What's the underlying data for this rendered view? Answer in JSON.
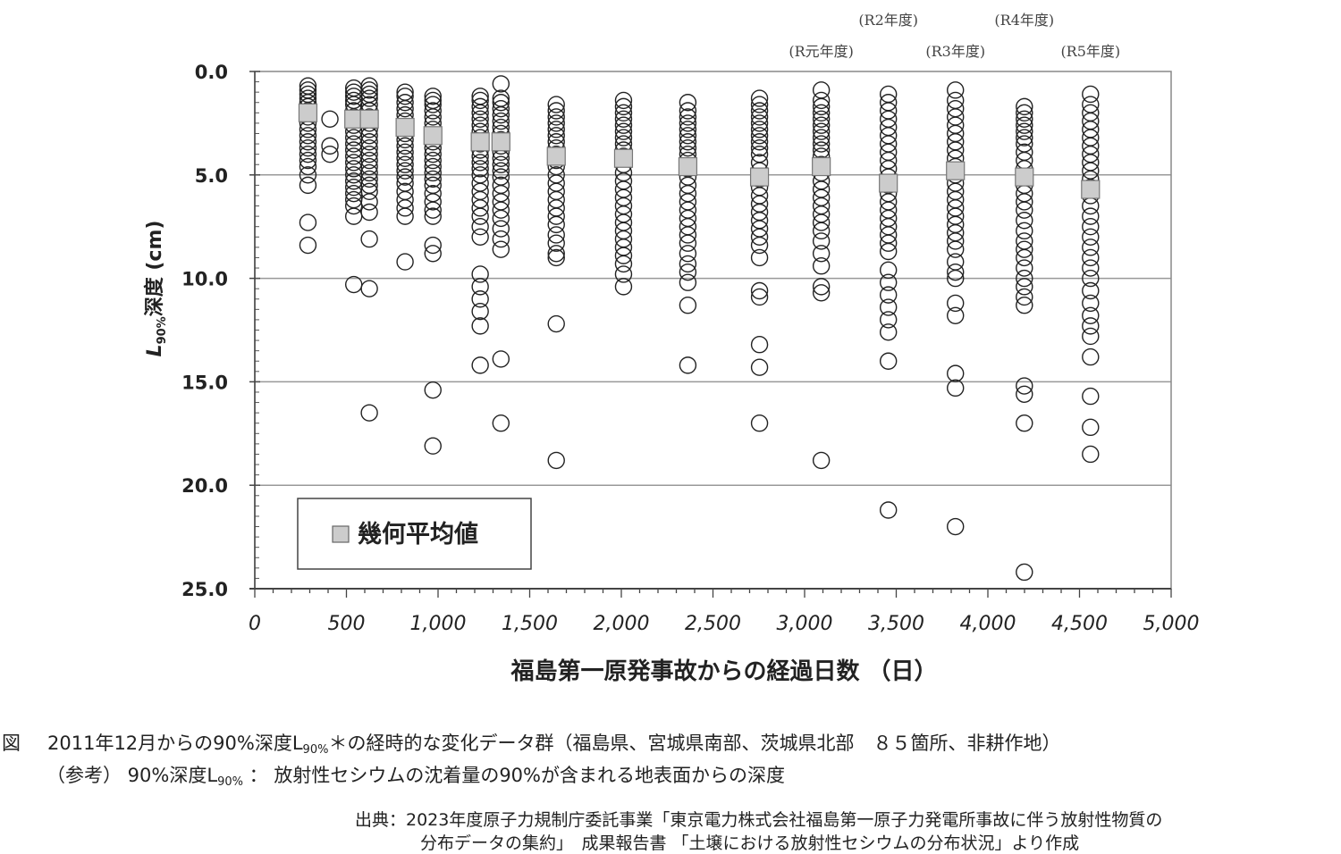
{
  "chart_data": {
    "type": "scatter",
    "title": "",
    "xlabel": "福島第一原発事故からの経過日数 （日）",
    "ylabel_main": "L",
    "ylabel_sub": "90%",
    "ylabel_rest": "深度 (cm)",
    "xlim": [
      0,
      5000
    ],
    "ylim": [
      0,
      25
    ],
    "y_inverted": true,
    "grid": "horizontal",
    "x_ticks": [
      "0",
      "500",
      "1,000",
      "1,500",
      "2,000",
      "2,500",
      "3,000",
      "3,500",
      "4,000",
      "4,500",
      "5,000"
    ],
    "x_tick_values": [
      0,
      500,
      1000,
      1500,
      2000,
      2500,
      3000,
      3500,
      4000,
      4500,
      5000
    ],
    "y_ticks": [
      "0.0",
      "5.0",
      "10.0",
      "15.0",
      "20.0",
      "25.0"
    ],
    "y_tick_values": [
      0,
      5,
      10,
      15,
      20,
      25
    ],
    "legend": {
      "placement": "bottom-left",
      "label": "幾何平均値",
      "marker_color": "#cccccc"
    },
    "period_annotations": [
      {
        "label": "(R元年度)",
        "day": 3091,
        "row": 2
      },
      {
        "label": "(R2年度)",
        "day": 3457,
        "row": 1
      },
      {
        "label": "(R3年度)",
        "day": 3823,
        "row": 2
      },
      {
        "label": "(R4年度)",
        "day": 4199,
        "row": 1
      },
      {
        "label": "(R5年度)",
        "day": 4560,
        "row": 2
      }
    ],
    "series": [
      {
        "day": 290,
        "geo_mean": 2.0,
        "values": [
          0.7,
          0.9,
          1.1,
          1.3,
          1.5,
          1.7,
          1.9,
          2.2,
          2.5,
          2.8,
          3.1,
          3.4,
          3.7,
          4.0,
          4.3,
          4.6,
          5.0,
          5.5,
          7.3,
          8.4
        ]
      },
      {
        "day": 410,
        "geo_mean": null,
        "values": [
          2.3,
          3.6,
          4.0
        ]
      },
      {
        "day": 540,
        "geo_mean": 2.3,
        "values": [
          0.8,
          1.0,
          1.2,
          1.4,
          1.6,
          1.9,
          2.2,
          2.6,
          2.9,
          3.2,
          3.5,
          3.8,
          4.1,
          4.4,
          4.7,
          5.0,
          5.3,
          5.6,
          5.9,
          6.2,
          6.5,
          7.0,
          10.3
        ]
      },
      {
        "day": 625,
        "geo_mean": 2.3,
        "values": [
          0.7,
          0.9,
          1.1,
          1.3,
          1.6,
          1.9,
          2.2,
          2.5,
          2.8,
          3.1,
          3.4,
          3.7,
          4.0,
          4.3,
          4.6,
          4.9,
          5.2,
          5.5,
          5.8,
          6.3,
          6.8,
          8.1,
          10.5,
          16.5
        ]
      },
      {
        "day": 820,
        "geo_mean": 2.7,
        "values": [
          1.0,
          1.2,
          1.5,
          1.8,
          2.1,
          2.4,
          2.7,
          3.0,
          3.3,
          3.6,
          3.9,
          4.2,
          4.5,
          4.8,
          5.1,
          5.4,
          5.8,
          6.2,
          6.6,
          7.0,
          9.2
        ]
      },
      {
        "day": 972,
        "geo_mean": 3.1,
        "values": [
          1.2,
          1.4,
          1.6,
          1.9,
          2.2,
          2.5,
          2.8,
          3.1,
          3.4,
          3.7,
          4.0,
          4.3,
          4.6,
          4.9,
          5.2,
          5.5,
          5.9,
          6.3,
          6.7,
          7.0,
          8.4,
          8.8,
          15.4,
          18.1
        ]
      },
      {
        "day": 1230,
        "geo_mean": 3.4,
        "values": [
          1.2,
          1.4,
          1.7,
          2.0,
          2.3,
          2.6,
          2.9,
          3.2,
          3.5,
          3.8,
          4.1,
          4.4,
          4.7,
          5.0,
          5.4,
          5.8,
          6.2,
          6.6,
          7.0,
          7.5,
          8.0,
          9.8,
          10.4,
          11.0,
          11.6,
          12.3,
          14.2
        ]
      },
      {
        "day": 1343,
        "geo_mean": 3.4,
        "values": [
          0.6,
          1.3,
          1.5,
          1.8,
          2.1,
          2.4,
          2.7,
          3.0,
          3.3,
          3.6,
          3.9,
          4.2,
          4.5,
          4.8,
          5.1,
          5.5,
          5.9,
          6.3,
          6.7,
          7.1,
          7.6,
          8.1,
          8.6,
          13.9,
          17.0
        ]
      },
      {
        "day": 1645,
        "geo_mean": 4.1,
        "values": [
          1.6,
          1.9,
          2.2,
          2.5,
          2.8,
          3.1,
          3.4,
          3.7,
          4.0,
          4.3,
          4.6,
          5.0,
          5.4,
          5.8,
          6.2,
          6.6,
          7.0,
          7.4,
          7.9,
          8.3,
          8.8,
          9.0,
          12.2,
          18.8
        ]
      },
      {
        "day": 2012,
        "geo_mean": 4.2,
        "values": [
          1.4,
          1.7,
          2.0,
          2.3,
          2.6,
          2.9,
          3.2,
          3.5,
          3.8,
          4.1,
          4.5,
          4.9,
          5.3,
          5.7,
          6.1,
          6.5,
          6.9,
          7.3,
          7.7,
          8.1,
          8.5,
          8.9,
          9.3,
          9.8,
          10.4
        ]
      },
      {
        "day": 2363,
        "geo_mean": 4.6,
        "values": [
          1.5,
          1.9,
          2.2,
          2.5,
          2.8,
          3.1,
          3.4,
          3.7,
          4.0,
          4.3,
          4.7,
          5.1,
          5.5,
          5.9,
          6.3,
          6.7,
          7.1,
          7.5,
          7.9,
          8.3,
          8.8,
          9.3,
          9.7,
          10.2,
          11.3,
          14.2
        ]
      },
      {
        "day": 2754,
        "geo_mean": 5.1,
        "values": [
          1.3,
          1.6,
          1.9,
          2.2,
          2.5,
          2.8,
          3.1,
          3.4,
          3.7,
          4.0,
          4.4,
          4.8,
          5.2,
          5.6,
          6.0,
          6.4,
          6.8,
          7.2,
          7.6,
          8.0,
          8.4,
          9.0,
          10.6,
          10.9,
          13.2,
          14.3,
          17.0
        ]
      },
      {
        "day": 3091,
        "geo_mean": 4.6,
        "values": [
          0.9,
          1.4,
          1.7,
          2.0,
          2.3,
          2.6,
          2.9,
          3.2,
          3.5,
          3.8,
          4.1,
          4.5,
          4.9,
          5.3,
          5.7,
          6.1,
          6.5,
          6.9,
          7.3,
          7.7,
          8.2,
          8.8,
          9.4,
          10.4,
          10.7,
          18.8
        ]
      },
      {
        "day": 3457,
        "geo_mean": 5.4,
        "values": [
          1.1,
          1.5,
          1.9,
          2.3,
          2.7,
          3.1,
          3.5,
          3.9,
          4.3,
          4.7,
          5.1,
          5.5,
          5.9,
          6.3,
          6.7,
          7.1,
          7.5,
          7.9,
          8.3,
          8.7,
          9.6,
          10.2,
          10.8,
          11.4,
          12.0,
          12.6,
          14.0,
          21.2
        ]
      },
      {
        "day": 3823,
        "geo_mean": 4.8,
        "values": [
          0.9,
          1.4,
          1.8,
          2.2,
          2.6,
          3.0,
          3.4,
          3.8,
          4.2,
          4.6,
          5.0,
          5.4,
          5.8,
          6.2,
          6.6,
          7.0,
          7.4,
          7.8,
          8.2,
          8.6,
          9.2,
          9.7,
          10.0,
          11.2,
          11.8,
          14.6,
          15.3,
          22.0
        ]
      },
      {
        "day": 4199,
        "geo_mean": 5.1,
        "values": [
          1.7,
          2.0,
          2.3,
          2.6,
          2.9,
          3.2,
          3.5,
          3.9,
          4.3,
          4.7,
          5.1,
          5.5,
          5.9,
          6.3,
          6.7,
          7.2,
          7.7,
          8.2,
          8.6,
          9.0,
          9.5,
          10.0,
          10.4,
          10.9,
          11.3,
          15.2,
          15.6,
          17.0,
          24.2
        ]
      },
      {
        "day": 4560,
        "geo_mean": 5.7,
        "values": [
          1.1,
          1.6,
          2.0,
          2.4,
          2.8,
          3.2,
          3.6,
          4.0,
          4.4,
          4.8,
          5.2,
          5.6,
          6.0,
          6.5,
          7.0,
          7.5,
          8.0,
          8.5,
          9.0,
          9.5,
          10.0,
          10.6,
          11.2,
          11.8,
          12.3,
          12.8,
          13.8,
          15.7,
          17.2,
          18.5
        ]
      }
    ]
  },
  "caption": {
    "fig_label": "図",
    "line1_a": "2011年12月からの90%深度L",
    "line1_sub": "90%",
    "line1_b": "＊の経時的な変化データ群（福島県、宮城県南部、茨城県北部　８５箇所、非耕作地）",
    "line2_a": "（参考） 90%深度L",
    "line2_sub": "90%",
    "line2_b": " ： 放射性セシウムの沈着量の90%が含まれる地表面からの深度"
  },
  "source": {
    "line1": "出典：2023年度原子力規制庁委託事業「東京電力株式会社福島第一原子力発電所事故に伴う放射性物質の",
    "line2": "分布データの集約」　成果報告書 「土壌における放射性セシウムの分布状況」より作成"
  }
}
